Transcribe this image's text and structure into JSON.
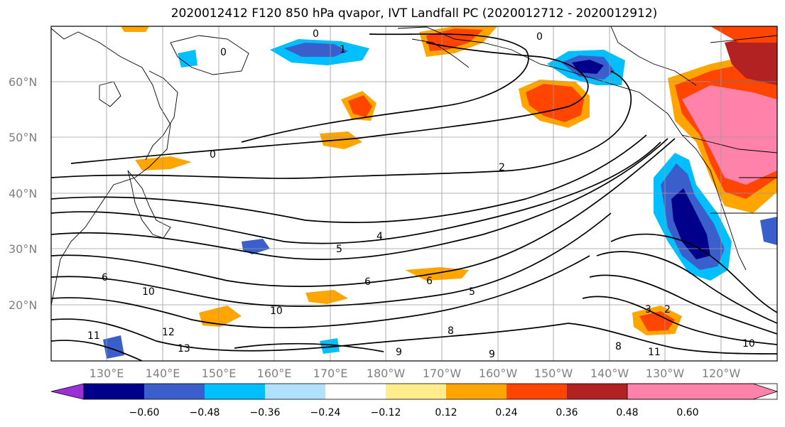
{
  "title": "2020012412 F120 850 hPa qvapor, IVT Landfall PC (2020012712 - 2020012912)",
  "lat_labels": [
    "20°N",
    "30°N",
    "40°N",
    "50°N",
    "60°N"
  ],
  "lon_labels": [
    "130°E",
    "140°E",
    "150°E",
    "160°E",
    "170°E",
    "180°W",
    "170°W",
    "160°W",
    "150°W",
    "140°W",
    "130°W",
    "120°W"
  ],
  "contour_labels": [
    "0",
    "0",
    "0",
    "0",
    "1",
    "2",
    "2",
    "3",
    "4",
    "5",
    "6",
    "6",
    "6",
    "5",
    "8",
    "8",
    "9",
    "9",
    "10",
    "10",
    "10",
    "11",
    "11",
    "12",
    "13"
  ],
  "colorbar": {
    "tick_labels": [
      "−0.60",
      "−0.48",
      "−0.36",
      "−0.24",
      "−0.12",
      "0.12",
      "0.24",
      "0.36",
      "0.48",
      "0.60"
    ],
    "colors": [
      "#9b30d9",
      "#00008b",
      "#3a5fcd",
      "#00bfff",
      "#b0e2ff",
      "#ffffff",
      "#ffec8b",
      "#ffa500",
      "#ff4500",
      "#b22222",
      "#ff82ab"
    ]
  },
  "colors": {
    "strong_negative": "#00008b",
    "negative": "#3a5fcd",
    "weak_negative": "#00bfff",
    "weak_positive": "#ffec8b",
    "positive": "#ffa500",
    "strong_positive": "#ff4500",
    "very_strong_positive": "#b22222",
    "extreme_positive": "#ff82ab"
  }
}
